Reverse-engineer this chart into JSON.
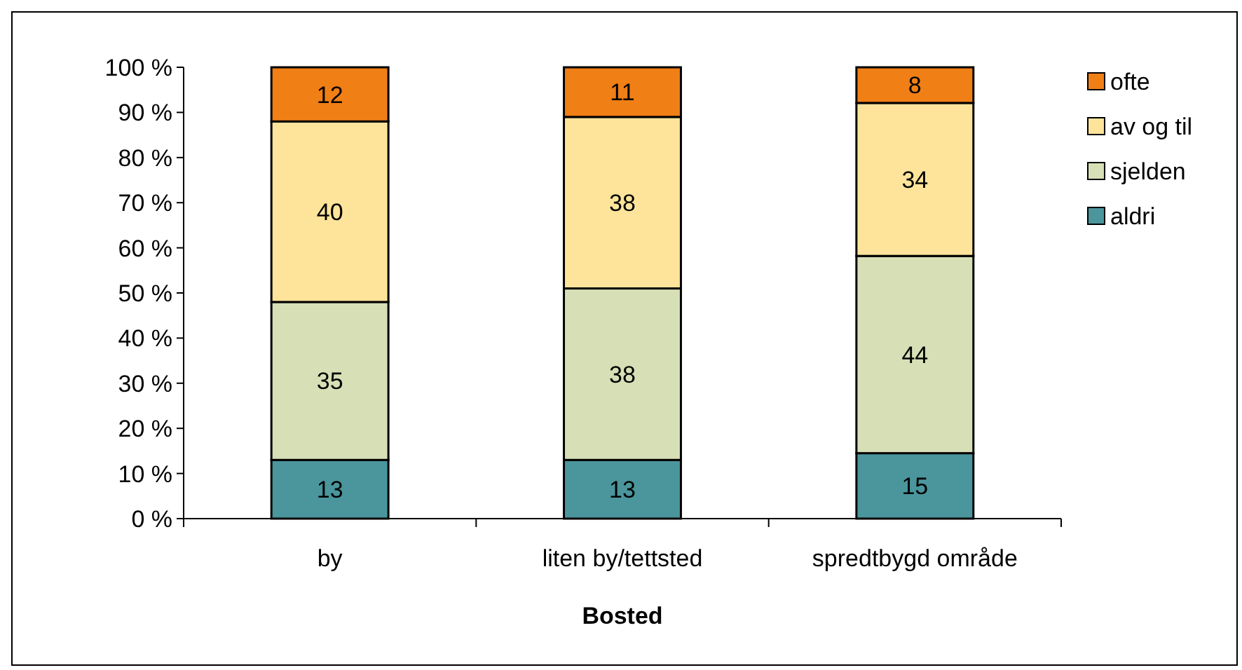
{
  "chart_data": {
    "type": "bar",
    "stacked": true,
    "xlabel": "Bosted",
    "categories": [
      "by",
      "liten by/tettsted",
      "spredtbygd område"
    ],
    "series": [
      {
        "name": "aldri",
        "color": "#4a969c",
        "values": [
          13,
          13,
          14.5
        ],
        "value_labels": [
          "13",
          "13",
          "15"
        ]
      },
      {
        "name": "sjelden",
        "color": "#d7dfb6",
        "values": [
          35,
          38,
          43.7
        ],
        "value_labels": [
          "35",
          "38",
          "44"
        ]
      },
      {
        "name": "av og til",
        "color": "#fee49b",
        "values": [
          40,
          38,
          33.9
        ],
        "value_labels": [
          "40",
          "38",
          "34"
        ]
      },
      {
        "name": "ofte",
        "color": "#f07f16",
        "values": [
          12,
          11,
          7.9
        ],
        "value_labels": [
          "12",
          "11",
          "8"
        ]
      }
    ],
    "ylim": [
      0,
      100
    ],
    "yticks": [
      {
        "value": 0,
        "label": "0 %"
      },
      {
        "value": 10,
        "label": "10 %"
      },
      {
        "value": 20,
        "label": "20 %"
      },
      {
        "value": 30,
        "label": "30 %"
      },
      {
        "value": 40,
        "label": "40 %"
      },
      {
        "value": 50,
        "label": "50 %"
      },
      {
        "value": 60,
        "label": "60 %"
      },
      {
        "value": 70,
        "label": "70 %"
      },
      {
        "value": 80,
        "label": "80 %"
      },
      {
        "value": 90,
        "label": "90 %"
      },
      {
        "value": 100,
        "label": "100 %"
      }
    ],
    "grid": false,
    "legend": "right"
  }
}
